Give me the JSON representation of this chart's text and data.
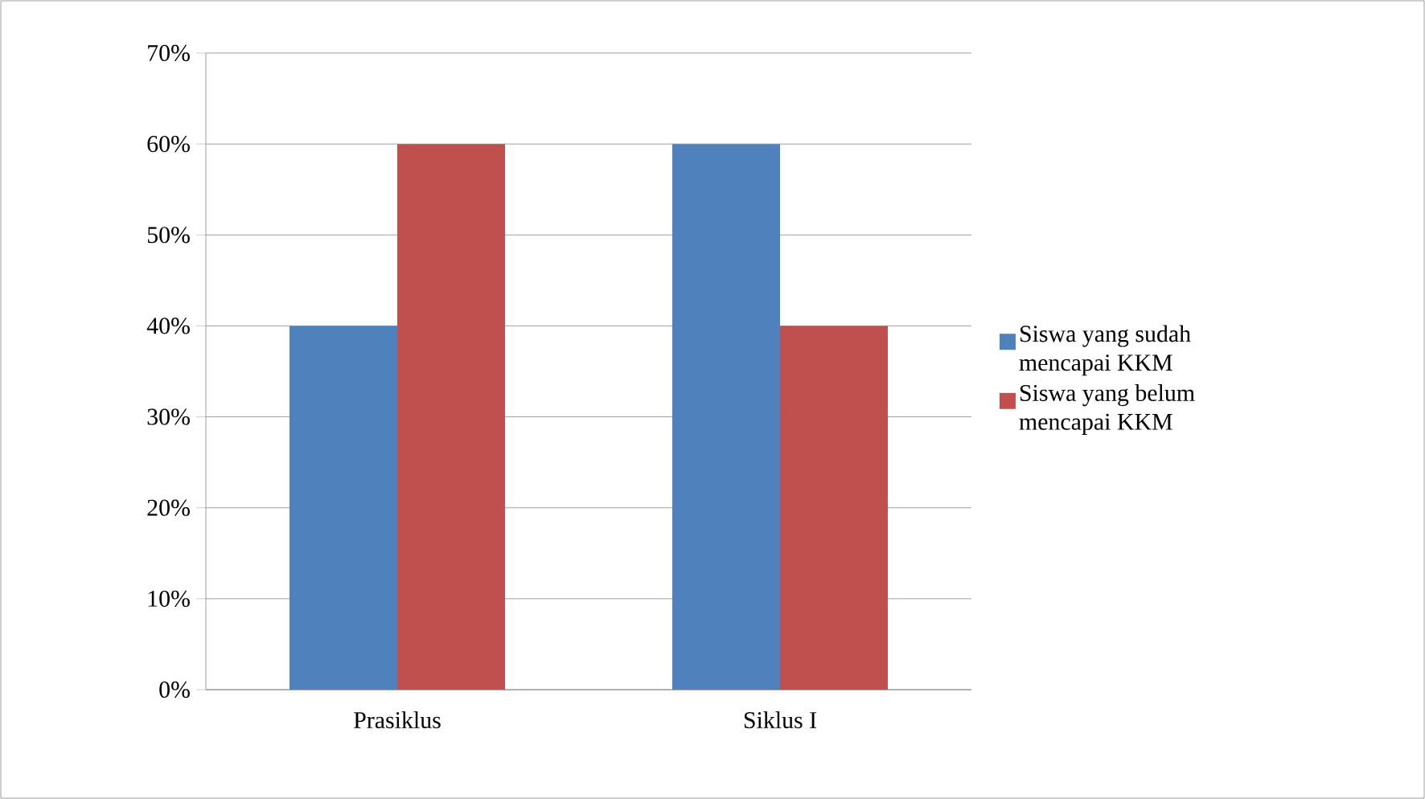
{
  "chart_data": {
    "type": "bar",
    "categories": [
      "Prasiklus",
      "Siklus I"
    ],
    "series": [
      {
        "name": "Siswa yang sudah mencapai KKM",
        "color": "#4f81bd",
        "values": [
          40,
          60
        ]
      },
      {
        "name": "Siswa yang belum mencapai KKM",
        "color": "#c0504d",
        "values": [
          60,
          40
        ]
      }
    ],
    "ylim": [
      0,
      70
    ],
    "yticks": [
      {
        "value": 0,
        "label": "0%"
      },
      {
        "value": 10,
        "label": "10%"
      },
      {
        "value": 20,
        "label": "20%"
      },
      {
        "value": 30,
        "label": "30%"
      },
      {
        "value": 40,
        "label": "40%"
      },
      {
        "value": 50,
        "label": "50%"
      },
      {
        "value": 60,
        "label": "60%"
      },
      {
        "value": 70,
        "label": "70%"
      }
    ],
    "grid": "y",
    "legend": "right"
  }
}
